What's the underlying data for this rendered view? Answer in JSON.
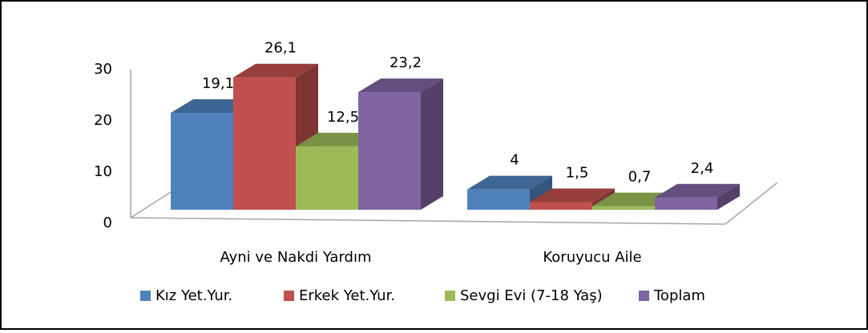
{
  "chart_data": {
    "type": "bar3d",
    "categories": [
      "Ayni ve Nakdi Yardım",
      "Koruyucu Aile"
    ],
    "series": [
      {
        "name": "Kız Yet.Yur.",
        "color": "#4f81bd",
        "values": [
          19.1,
          4
        ],
        "value_labels": [
          "19,1",
          "4"
        ]
      },
      {
        "name": "Erkek Yet.Yur.",
        "color": "#c0504d",
        "values": [
          26.1,
          1.5
        ],
        "value_labels": [
          "26,1",
          "1,5"
        ]
      },
      {
        "name": "Sevgi Evi (7-18 Yaş)",
        "color": "#9bbb59",
        "values": [
          12.5,
          0.7
        ],
        "value_labels": [
          "12,5",
          "0,7"
        ]
      },
      {
        "name": "Toplam",
        "color": "#8064a2",
        "values": [
          23.2,
          2.4
        ],
        "value_labels": [
          "23,2",
          "2,4"
        ]
      }
    ],
    "ylim": [
      0,
      30
    ],
    "yticks": [
      0,
      10,
      20,
      30
    ],
    "legend": "bottom"
  }
}
